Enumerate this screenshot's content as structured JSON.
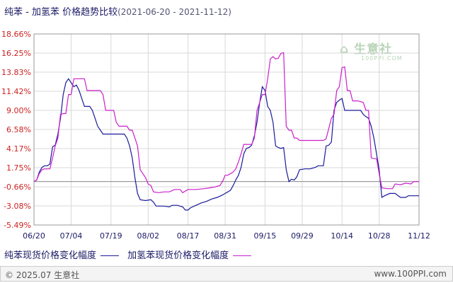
{
  "title": {
    "main": "纯苯 - 加氢苯 价格趋势比较",
    "date_range": "(2021-06-20 - 2021-11-12)"
  },
  "footer": {
    "copyright": "© 2025.07 生意社",
    "site": "www.100PPI.com"
  },
  "watermark": {
    "brand": "生意社",
    "url": "100PPI.COM"
  },
  "colors": {
    "series1": "#1a1a9c",
    "series2": "#cc1fcc",
    "axis_text": "#cc2222",
    "grid": "#d8d8d8"
  },
  "chart_data": {
    "type": "line",
    "title": "纯苯 - 加氢苯 价格趋势比较",
    "xlabel": "",
    "ylabel": "",
    "grid": true,
    "legend_position": "bottom-left",
    "ylim": [
      -5.49,
      18.66
    ],
    "yticks": [
      "18.66%",
      "16.25%",
      "13.83%",
      "11.42%",
      "9.00%",
      "6.58%",
      "4.17%",
      "1.75%",
      "-0.66%",
      "-3.08%",
      "-5.49%"
    ],
    "ytick_values": [
      18.66,
      16.25,
      13.83,
      11.42,
      9.0,
      6.58,
      4.17,
      1.75,
      -0.66,
      -3.08,
      -5.49
    ],
    "xticks": [
      "06/20",
      "07/04",
      "07/19",
      "08/02",
      "08/17",
      "08/31",
      "09/15",
      "09/29",
      "10/14",
      "10/28",
      "11/12"
    ],
    "baseline": 0,
    "series": [
      {
        "name": "纯苯现货价格变化幅度",
        "color": "#1a1a9c",
        "points": [
          [
            "06/20",
            0
          ],
          [
            "06/21",
            0.2
          ],
          [
            "06/22",
            1.2
          ],
          [
            "06/23",
            1.8
          ],
          [
            "06/24",
            2.0
          ],
          [
            "06/25",
            2.0
          ],
          [
            "06/26",
            2.2
          ],
          [
            "06/27",
            4.4
          ],
          [
            "06/28",
            4.6
          ],
          [
            "06/29",
            6.0
          ],
          [
            "06/30",
            8.0
          ],
          [
            "07/01",
            11.0
          ],
          [
            "07/02",
            12.5
          ],
          [
            "07/03",
            13.0
          ],
          [
            "07/04",
            12.5
          ],
          [
            "07/05",
            12.0
          ],
          [
            "07/06",
            12.2
          ],
          [
            "07/07",
            11.5
          ],
          [
            "07/08",
            10.5
          ],
          [
            "07/09",
            9.5
          ],
          [
            "07/10",
            9.5
          ],
          [
            "07/11",
            9.5
          ],
          [
            "07/12",
            9.0
          ],
          [
            "07/13",
            8.0
          ],
          [
            "07/14",
            7.0
          ],
          [
            "07/15",
            6.5
          ],
          [
            "07/16",
            6.0
          ],
          [
            "07/17",
            6.0
          ],
          [
            "07/19",
            6.0
          ],
          [
            "07/22",
            6.0
          ],
          [
            "07/24",
            6.0
          ],
          [
            "07/25",
            5.5
          ],
          [
            "07/26",
            4.5
          ],
          [
            "07/27",
            3.0
          ],
          [
            "07/28",
            0.5
          ],
          [
            "07/29",
            -1.5
          ],
          [
            "07/30",
            -2.3
          ],
          [
            "08/01",
            -2.4
          ],
          [
            "08/03",
            -2.3
          ],
          [
            "08/04",
            -2.6
          ],
          [
            "08/05",
            -3.1
          ],
          [
            "08/08",
            -3.1
          ],
          [
            "08/10",
            -3.2
          ],
          [
            "08/11",
            -3.0
          ],
          [
            "08/13",
            -3.0
          ],
          [
            "08/15",
            -3.2
          ],
          [
            "08/16",
            -3.6
          ],
          [
            "08/17",
            -3.6
          ],
          [
            "08/18",
            -3.3
          ],
          [
            "08/20",
            -3.0
          ],
          [
            "08/22",
            -2.7
          ],
          [
            "08/24",
            -2.5
          ],
          [
            "08/26",
            -2.2
          ],
          [
            "08/28",
            -2.0
          ],
          [
            "08/30",
            -1.7
          ],
          [
            "08/31",
            -1.5
          ],
          [
            "09/01",
            -1.3
          ],
          [
            "09/02",
            -1.1
          ],
          [
            "09/03",
            -0.5
          ],
          [
            "09/04",
            0.2
          ],
          [
            "09/05",
            0.8
          ],
          [
            "09/06",
            1.8
          ],
          [
            "09/07",
            3.5
          ],
          [
            "09/08",
            4.2
          ],
          [
            "09/09",
            4.3
          ],
          [
            "09/10",
            4.6
          ],
          [
            "09/11",
            5.8
          ],
          [
            "09/12",
            7.5
          ],
          [
            "09/13",
            10.0
          ],
          [
            "09/14",
            12.0
          ],
          [
            "09/15",
            11.5
          ],
          [
            "09/16",
            9.5
          ],
          [
            "09/17",
            9.0
          ],
          [
            "09/18",
            7.5
          ],
          [
            "09/19",
            4.5
          ],
          [
            "09/20",
            4.3
          ],
          [
            "09/21",
            4.2
          ],
          [
            "09/22",
            4.3
          ],
          [
            "09/23",
            1.5
          ],
          [
            "09/24",
            0.0
          ],
          [
            "09/25",
            0.3
          ],
          [
            "09/26",
            0.2
          ],
          [
            "09/27",
            0.6
          ],
          [
            "09/28",
            1.5
          ],
          [
            "09/30",
            1.6
          ],
          [
            "10/02",
            1.6
          ],
          [
            "10/04",
            1.8
          ],
          [
            "10/05",
            2.0
          ],
          [
            "10/07",
            2.0
          ],
          [
            "10/08",
            4.5
          ],
          [
            "10/09",
            4.6
          ],
          [
            "10/10",
            5.0
          ],
          [
            "10/11",
            9.0
          ],
          [
            "10/12",
            10.0
          ],
          [
            "10/13",
            10.3
          ],
          [
            "10/14",
            10.5
          ],
          [
            "10/15",
            9.0
          ],
          [
            "10/17",
            9.0
          ],
          [
            "10/19",
            9.0
          ],
          [
            "10/21",
            9.0
          ],
          [
            "10/22",
            8.5
          ],
          [
            "10/23",
            8.2
          ],
          [
            "10/24",
            8.0
          ],
          [
            "10/25",
            7.0
          ],
          [
            "10/26",
            5.5
          ],
          [
            "10/27",
            3.5
          ],
          [
            "10/28",
            1.5
          ],
          [
            "10/29",
            -2.0
          ],
          [
            "10/30",
            -1.8
          ],
          [
            "11/01",
            -1.5
          ],
          [
            "11/03",
            -1.5
          ],
          [
            "11/05",
            -2.0
          ],
          [
            "11/07",
            -2.0
          ],
          [
            "11/08",
            -1.8
          ],
          [
            "11/10",
            -1.8
          ],
          [
            "11/12",
            -1.8
          ]
        ]
      },
      {
        "name": "加氢苯现货价格变化幅度",
        "color": "#cc1fcc",
        "points": [
          [
            "06/20",
            0
          ],
          [
            "06/21",
            0.2
          ],
          [
            "06/22",
            1.0
          ],
          [
            "06/23",
            1.5
          ],
          [
            "06/24",
            1.6
          ],
          [
            "06/25",
            1.6
          ],
          [
            "06/26",
            1.6
          ],
          [
            "06/27",
            3.0
          ],
          [
            "06/28",
            4.5
          ],
          [
            "06/29",
            5.5
          ],
          [
            "06/30",
            8.5
          ],
          [
            "07/01",
            8.6
          ],
          [
            "07/02",
            8.6
          ],
          [
            "07/03",
            11.0
          ],
          [
            "07/04",
            11.0
          ],
          [
            "07/05",
            13.0
          ],
          [
            "07/06",
            13.0
          ],
          [
            "07/07",
            13.0
          ],
          [
            "07/08",
            13.0
          ],
          [
            "07/09",
            13.0
          ],
          [
            "07/10",
            11.5
          ],
          [
            "07/11",
            11.5
          ],
          [
            "07/12",
            11.5
          ],
          [
            "07/13",
            11.5
          ],
          [
            "07/14",
            11.5
          ],
          [
            "07/15",
            11.5
          ],
          [
            "07/16",
            11.0
          ],
          [
            "07/17",
            9.0
          ],
          [
            "07/19",
            9.0
          ],
          [
            "07/20",
            9.0
          ],
          [
            "07/21",
            7.5
          ],
          [
            "07/22",
            7.0
          ],
          [
            "07/24",
            7.0
          ],
          [
            "07/25",
            7.0
          ],
          [
            "07/26",
            6.5
          ],
          [
            "07/27",
            6.5
          ],
          [
            "07/28",
            5.5
          ],
          [
            "07/29",
            4.5
          ],
          [
            "07/30",
            1.5
          ],
          [
            "08/01",
            0.5
          ],
          [
            "08/02",
            -0.3
          ],
          [
            "08/03",
            -0.5
          ],
          [
            "08/04",
            -1.3
          ],
          [
            "08/06",
            -1.4
          ],
          [
            "08/08",
            -1.3
          ],
          [
            "08/10",
            -1.3
          ],
          [
            "08/12",
            -1.0
          ],
          [
            "08/14",
            -1.0
          ],
          [
            "08/15",
            -1.4
          ],
          [
            "08/17",
            -1.0
          ],
          [
            "08/20",
            -1.0
          ],
          [
            "08/23",
            -0.9
          ],
          [
            "08/25",
            -0.8
          ],
          [
            "08/27",
            -0.7
          ],
          [
            "08/29",
            -0.5
          ],
          [
            "08/30",
            0.0
          ],
          [
            "08/31",
            0.8
          ],
          [
            "09/01",
            0.8
          ],
          [
            "09/03",
            1.2
          ],
          [
            "09/04",
            1.6
          ],
          [
            "09/05",
            2.5
          ],
          [
            "09/06",
            3.5
          ],
          [
            "09/07",
            4.7
          ],
          [
            "09/09",
            4.7
          ],
          [
            "09/10",
            4.7
          ],
          [
            "09/11",
            5.5
          ],
          [
            "09/12",
            9.0
          ],
          [
            "09/13",
            10.0
          ],
          [
            "09/14",
            11.0
          ],
          [
            "09/15",
            11.0
          ],
          [
            "09/16",
            13.0
          ],
          [
            "09/17",
            15.5
          ],
          [
            "09/18",
            15.8
          ],
          [
            "09/19",
            15.5
          ],
          [
            "09/20",
            15.6
          ],
          [
            "09/21",
            16.2
          ],
          [
            "09/22",
            16.3
          ],
          [
            "09/23",
            7.0
          ],
          [
            "09/24",
            6.5
          ],
          [
            "09/25",
            6.5
          ],
          [
            "09/26",
            5.5
          ],
          [
            "09/27",
            5.5
          ],
          [
            "09/28",
            5.2
          ],
          [
            "09/29",
            5.2
          ],
          [
            "10/01",
            5.2
          ],
          [
            "10/03",
            5.2
          ],
          [
            "10/05",
            5.2
          ],
          [
            "10/07",
            5.2
          ],
          [
            "10/08",
            5.4
          ],
          [
            "10/10",
            8.0
          ],
          [
            "10/11",
            8.5
          ],
          [
            "10/12",
            11.5
          ],
          [
            "10/13",
            12.0
          ],
          [
            "10/14",
            14.4
          ],
          [
            "10/15",
            14.5
          ],
          [
            "10/16",
            11.5
          ],
          [
            "10/17",
            11.5
          ],
          [
            "10/18",
            10.2
          ],
          [
            "10/20",
            10.2
          ],
          [
            "10/22",
            10.0
          ],
          [
            "10/23",
            9.0
          ],
          [
            "10/24",
            9.0
          ],
          [
            "10/25",
            3.0
          ],
          [
            "10/26",
            2.9
          ],
          [
            "10/27",
            2.9
          ],
          [
            "10/28",
            1.0
          ],
          [
            "10/29",
            -0.8
          ],
          [
            "10/31",
            -0.9
          ],
          [
            "11/02",
            -0.9
          ],
          [
            "11/03",
            -0.3
          ],
          [
            "11/05",
            -0.4
          ],
          [
            "11/07",
            -0.2
          ],
          [
            "11/09",
            -0.3
          ],
          [
            "11/10",
            0.0
          ],
          [
            "11/12",
            0.0
          ]
        ]
      }
    ]
  }
}
